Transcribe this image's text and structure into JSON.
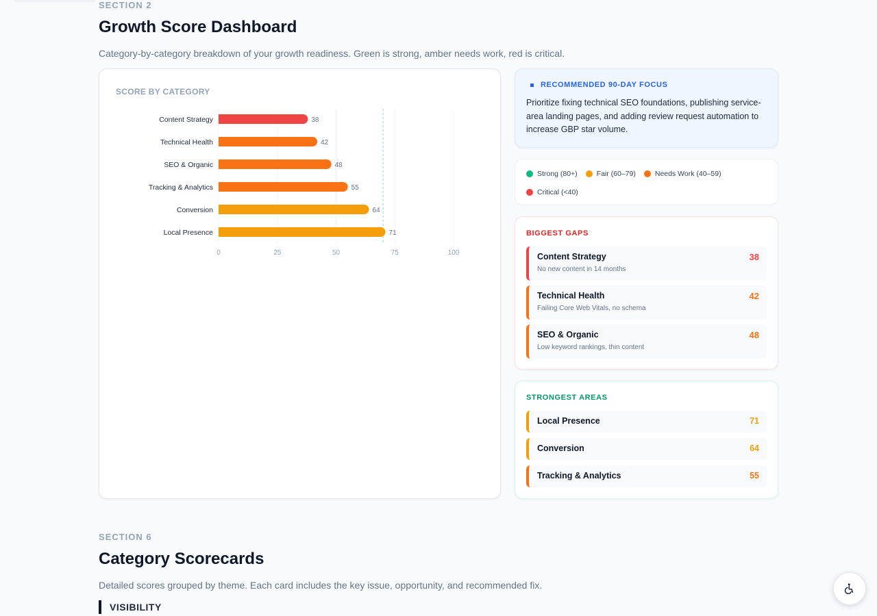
{
  "section2": {
    "label": "SECTION 2",
    "title": "Growth Score Dashboard",
    "description": "Category-by-category breakdown of your growth readiness. Green is strong, amber needs work, red is critical."
  },
  "chart": {
    "title": "SCORE BY CATEGORY"
  },
  "chart_data": {
    "type": "bar",
    "orientation": "horizontal",
    "categories": [
      "Content Strategy",
      "Technical Health",
      "SEO & Organic",
      "Tracking & Analytics",
      "Conversion",
      "Local Presence"
    ],
    "values": [
      38,
      42,
      48,
      55,
      64,
      71
    ],
    "colors": [
      "#ef4444",
      "#f97316",
      "#f97316",
      "#f97316",
      "#f59e0b",
      "#f59e0b"
    ],
    "xlim": [
      0,
      100
    ],
    "xticks": [
      "0",
      "25",
      "50",
      "75",
      "100"
    ],
    "reference_line": 70,
    "grid": true,
    "title": "SCORE BY CATEGORY"
  },
  "focus": {
    "heading": "RECOMMENDED 90-DAY FOCUS",
    "text": "Prioritize fixing technical SEO foundations, publishing service-area landing pages, and adding review request automation to increase GBP star volume."
  },
  "legend": [
    {
      "label": "Strong (80+)",
      "color": "#10b981"
    },
    {
      "label": "Fair (60–79)",
      "color": "#f59e0b"
    },
    {
      "label": "Needs Work (40–59)",
      "color": "#f97316"
    },
    {
      "label": "Critical (<40)",
      "color": "#ef4444"
    }
  ],
  "gaps": {
    "heading": "BIGGEST GAPS",
    "color": "#dc2626",
    "items": [
      {
        "name": "Content Strategy",
        "detail": "No new content in 14 months",
        "score": "38",
        "color": "#ef4444"
      },
      {
        "name": "Technical Health",
        "detail": "Failing Core Web Vitals, no schema",
        "score": "42",
        "color": "#f97316"
      },
      {
        "name": "SEO & Organic",
        "detail": "Low keyword rankings, thin content",
        "score": "48",
        "color": "#f97316"
      }
    ]
  },
  "strongest": {
    "heading": "STRONGEST AREAS",
    "color": "#059669",
    "items": [
      {
        "name": "Local Presence",
        "score": "71",
        "color": "#f59e0b"
      },
      {
        "name": "Conversion",
        "score": "64",
        "color": "#f59e0b"
      },
      {
        "name": "Tracking & Analytics",
        "score": "55",
        "color": "#f97316"
      }
    ]
  },
  "section6": {
    "label": "SECTION 6",
    "title": "Category Scorecards",
    "description": "Detailed scores grouped by theme. Each card includes the key issue, opportunity, and recommended fix.",
    "subheading": "VISIBILITY"
  },
  "accessibility_button": {
    "icon": "accessibility-icon"
  }
}
